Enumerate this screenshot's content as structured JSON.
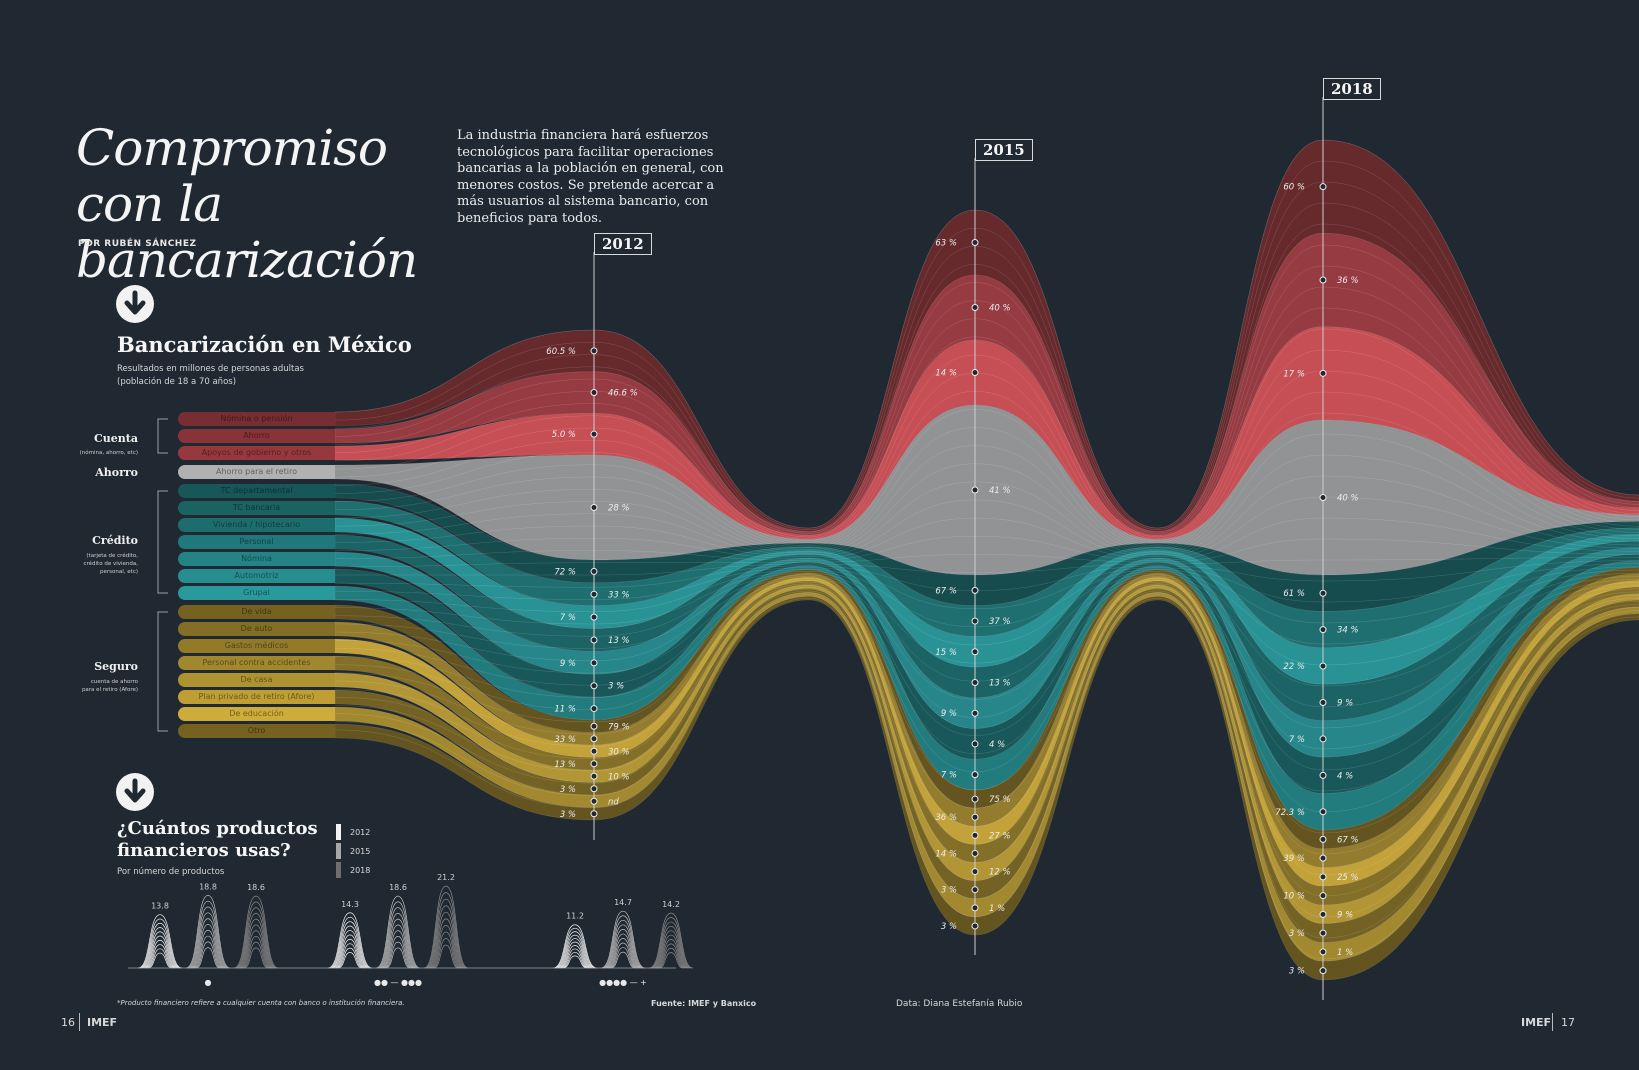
{
  "title": "Compromiso con la bancarización",
  "byline": "POR RUBÉN SÁNCHEZ",
  "intro": "La industria financiera hará esfuerzos tecnológicos para facilitar operaciones bancarias a la población en general, con menores costos. Se pretende acercar a más usuarios al sistema bancario, con beneficios para todos.",
  "section1": {
    "title": "Bancarización en México",
    "subtitle": "Resultados en millones de personas adultas (población de 18 a 70 años)"
  },
  "groups": [
    {
      "label": "Cuenta",
      "sub": "(nómina, ahorro, etc)"
    },
    {
      "label": "Ahorro",
      "sub": ""
    },
    {
      "label": "Crédito",
      "sub": "(tarjeta de crédito, crédito de vivienda, personal, etc)"
    },
    {
      "label": "Seguro",
      "sub": "cuenta de ahorro para el retiro (Afore)"
    }
  ],
  "categories": [
    "Nómina o pensión",
    "Ahorro",
    "Apoyos de gobierno y otros",
    "Ahorro para el retiro",
    "TC departamental",
    "TC bancaria",
    "Vivienda / hipotecario",
    "Personal",
    "Nómina",
    "Automotriz",
    "Grupal",
    "De vida",
    "De auto",
    "Gastos médicos",
    "Personal contra accidentes",
    "De casa",
    "Plan privado de retiro (Afore)",
    "De educación",
    "Otro"
  ],
  "colors": {
    "cuenta": "#d9535a",
    "ahorro": "#d0d0d0",
    "credito": "#2b9ea0",
    "seguro": "#d4b13b",
    "background": "#202932"
  },
  "years": [
    "2012",
    "2015",
    "2018"
  ],
  "chart_data": [
    {
      "type": "area",
      "title": "Bancarización en México",
      "subtitle": "Resultados en millones de personas adultas (población de 18 a 70 años)",
      "x": [
        "2012",
        "2015",
        "2018"
      ],
      "value_labels": {
        "2012": [
          "60.5 %",
          "46.6 %",
          "5.0 %",
          "28 %",
          "72 %",
          "33 %",
          "7 %",
          "13 %",
          "9 %",
          "3 %",
          "11 %",
          "79 %",
          "33 %",
          "30 %",
          "13 %",
          "10 %",
          "3 %",
          "nd",
          "3 %"
        ],
        "2015": [
          "63 %",
          "40 %",
          "14 %",
          "41 %",
          "67 %",
          "37 %",
          "15 %",
          "13 %",
          "9 %",
          "4 %",
          "7 %",
          "75 %",
          "36 %",
          "27 %",
          "14 %",
          "12 %",
          "3 %",
          "1 %",
          "3 %"
        ],
        "2018": [
          "60 %",
          "36 %",
          "17 %",
          "40 %",
          "61 %",
          "34 %",
          "22 %",
          "9 %",
          "7 %",
          "4 %",
          "72.3 %",
          "67 %",
          "39 %",
          "25 %",
          "10 %",
          "9 %",
          "3 %",
          "1 %",
          "3 %"
        ]
      }
    },
    {
      "type": "area",
      "title": "¿Cuántos productos financieros usas?",
      "subtitle": "Por número de productos",
      "legend": [
        "2012",
        "2015",
        "2018"
      ],
      "groups": [
        {
          "label": "●",
          "values": [
            13.8,
            18.8,
            18.6
          ]
        },
        {
          "label": "●● — ●●●",
          "values": [
            14.3,
            18.6,
            21.2
          ]
        },
        {
          "label": "●●●● — +",
          "values": [
            11.2,
            14.7,
            14.2
          ]
        }
      ]
    }
  ],
  "section2": {
    "title": "¿Cuántos productos financieros usas?",
    "subtitle": "Por número de productos"
  },
  "footnote": "*Producto financiero refiere a cualquier cuenta con banco o institución financiera.",
  "source": "Fuente:  IMEF y Banxico",
  "credit": "Data: Diana Estefanía Rubio",
  "page_left": "16",
  "page_right": "17",
  "brand": "IMEF"
}
